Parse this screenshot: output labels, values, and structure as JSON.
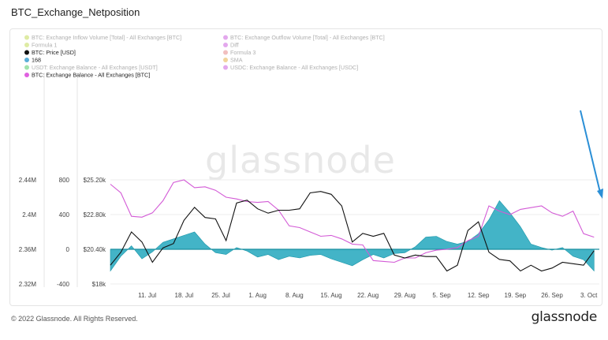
{
  "title": "BTC_Exchange_Netposition",
  "footer": "© 2022 Glassnode. All Rights Reserved.",
  "brand": "glassnode",
  "watermark": "glassnode",
  "chart_data": {
    "type": "area",
    "title": "BTC_Exchange_Netposition",
    "legend": [
      {
        "label": "BTC: Exchange Inflow Volume [Total] - All Exchanges [BTC]",
        "color": "#b5d335",
        "faded": true
      },
      {
        "label": "BTC: Exchange Outflow Volume [Total] - All Exchanges [BTC]",
        "color": "#c23fd6",
        "faded": true
      },
      {
        "label": "Formula 1",
        "color": "#b5d335",
        "faded": true
      },
      {
        "label": "Diff",
        "color": "#c23fd6",
        "faded": true
      },
      {
        "label": "BTC: Price [USD]",
        "color": "#111111",
        "faded": false
      },
      {
        "label": "Formula 3",
        "color": "#e07070",
        "faded": true
      },
      {
        "label": "168",
        "color": "#5aaed8",
        "faded": false
      },
      {
        "label": "SMA",
        "color": "#e0a020",
        "faded": true
      },
      {
        "label": "USDT: Exchange Balance - All Exchanges [USDT]",
        "color": "#2ec24a",
        "faded": true
      },
      {
        "label": "USDC: Exchange Balance - All Exchanges [USDC]",
        "color": "#c23fd6",
        "faded": true
      },
      {
        "label": "BTC: Exchange Balance - All Exchanges [BTC]",
        "color": "#e060e0",
        "faded": false
      }
    ],
    "x_ticks": [
      "11. Jul",
      "18. Jul",
      "25. Jul",
      "1. Aug",
      "8. Aug",
      "15. Aug",
      "22. Aug",
      "29. Aug",
      "5. Sep",
      "12. Sep",
      "19. Sep",
      "26. Sep",
      "3. Oct"
    ],
    "y_axis_balance": {
      "ticks": [
        "2.32M",
        "2.36M",
        "2.4M",
        "2.44M"
      ],
      "values": [
        2320000,
        2360000,
        2400000,
        2440000
      ]
    },
    "y_axis_netflow": {
      "ticks": [
        "-400",
        "0",
        "400",
        "800"
      ],
      "values": [
        -400,
        0,
        400,
        800
      ]
    },
    "y_axis_price": {
      "ticks": [
        "$18k",
        "$20.40k",
        "$22.80k",
        "$25.20k"
      ],
      "values": [
        18000,
        20400,
        22800,
        25200
      ]
    },
    "series_price": {
      "name": "BTC: Price [USD]",
      "color": "#111111",
      "x": [
        "2022-07-04",
        "2022-07-06",
        "2022-07-08",
        "2022-07-10",
        "2022-07-12",
        "2022-07-14",
        "2022-07-16",
        "2022-07-18",
        "2022-07-20",
        "2022-07-22",
        "2022-07-24",
        "2022-07-26",
        "2022-07-28",
        "2022-07-30",
        "2022-08-01",
        "2022-08-03",
        "2022-08-05",
        "2022-08-07",
        "2022-08-09",
        "2022-08-11",
        "2022-08-13",
        "2022-08-15",
        "2022-08-17",
        "2022-08-19",
        "2022-08-21",
        "2022-08-23",
        "2022-08-25",
        "2022-08-27",
        "2022-08-29",
        "2022-08-31",
        "2022-09-02",
        "2022-09-04",
        "2022-09-06",
        "2022-09-08",
        "2022-09-10",
        "2022-09-12",
        "2022-09-14",
        "2022-09-16",
        "2022-09-18",
        "2022-09-20",
        "2022-09-22",
        "2022-09-24",
        "2022-09-26",
        "2022-09-28",
        "2022-09-30",
        "2022-10-02",
        "2022-10-04"
      ],
      "values": [
        19300,
        20200,
        21600,
        20900,
        19500,
        20500,
        20800,
        22400,
        23300,
        22600,
        22500,
        21000,
        23600,
        23800,
        23200,
        22900,
        23100,
        23100,
        23200,
        24300,
        24400,
        24200,
        23400,
        20900,
        21500,
        21300,
        21500,
        20000,
        19800,
        20000,
        19900,
        19900,
        18900,
        19300,
        21700,
        22300,
        20200,
        19700,
        19600,
        18900,
        19300,
        18900,
        19100,
        19500,
        19400,
        19300,
        20300
      ]
    },
    "series_balance": {
      "name": "BTC: Exchange Balance - All Exchanges [BTC]",
      "color": "#d35ad6",
      "x": [
        "2022-07-04",
        "2022-07-06",
        "2022-07-08",
        "2022-07-10",
        "2022-07-12",
        "2022-07-14",
        "2022-07-16",
        "2022-07-18",
        "2022-07-20",
        "2022-07-22",
        "2022-07-24",
        "2022-07-26",
        "2022-07-28",
        "2022-07-30",
        "2022-08-01",
        "2022-08-03",
        "2022-08-05",
        "2022-08-07",
        "2022-08-09",
        "2022-08-11",
        "2022-08-13",
        "2022-08-15",
        "2022-08-17",
        "2022-08-19",
        "2022-08-21",
        "2022-08-23",
        "2022-08-25",
        "2022-08-27",
        "2022-08-29",
        "2022-08-31",
        "2022-09-02",
        "2022-09-04",
        "2022-09-06",
        "2022-09-08",
        "2022-09-10",
        "2022-09-12",
        "2022-09-14",
        "2022-09-16",
        "2022-09-18",
        "2022-09-20",
        "2022-09-22",
        "2022-09-24",
        "2022-09-26",
        "2022-09-28",
        "2022-09-30",
        "2022-10-02",
        "2022-10-04"
      ],
      "values": [
        2435000,
        2425000,
        2398000,
        2397000,
        2402000,
        2416000,
        2437000,
        2440000,
        2431000,
        2432000,
        2428000,
        2420000,
        2418000,
        2415000,
        2414000,
        2415000,
        2405000,
        2387000,
        2385000,
        2380000,
        2375000,
        2376000,
        2372000,
        2366000,
        2365000,
        2347000,
        2346000,
        2345000,
        2350000,
        2350000,
        2356000,
        2359000,
        2360000,
        2362000,
        2370000,
        2375000,
        2410000,
        2404000,
        2400000,
        2406000,
        2408000,
        2410000,
        2402000,
        2398000,
        2404000,
        2378000,
        2374000
      ]
    },
    "series_netflow": {
      "name": "168",
      "color": "#1fa5b8",
      "x": [
        "2022-07-04",
        "2022-07-06",
        "2022-07-08",
        "2022-07-10",
        "2022-07-12",
        "2022-07-14",
        "2022-07-16",
        "2022-07-18",
        "2022-07-20",
        "2022-07-22",
        "2022-07-24",
        "2022-07-26",
        "2022-07-28",
        "2022-07-30",
        "2022-08-01",
        "2022-08-03",
        "2022-08-05",
        "2022-08-07",
        "2022-08-09",
        "2022-08-11",
        "2022-08-13",
        "2022-08-15",
        "2022-08-17",
        "2022-08-19",
        "2022-08-21",
        "2022-08-23",
        "2022-08-25",
        "2022-08-27",
        "2022-08-29",
        "2022-08-31",
        "2022-09-02",
        "2022-09-04",
        "2022-09-06",
        "2022-09-08",
        "2022-09-10",
        "2022-09-12",
        "2022-09-14",
        "2022-09-16",
        "2022-09-18",
        "2022-09-20",
        "2022-09-22",
        "2022-09-24",
        "2022-09-26",
        "2022-09-28",
        "2022-09-30",
        "2022-10-02",
        "2022-10-04"
      ],
      "values": [
        -250,
        -80,
        40,
        -110,
        -30,
        80,
        120,
        160,
        200,
        60,
        -40,
        -60,
        20,
        -20,
        -90,
        -60,
        -120,
        -80,
        -100,
        -70,
        -60,
        -110,
        -150,
        -190,
        -120,
        -60,
        -100,
        -50,
        -40,
        30,
        140,
        150,
        90,
        60,
        90,
        180,
        340,
        560,
        420,
        260,
        60,
        20,
        -10,
        20,
        -80,
        -120,
        -250
      ]
    }
  }
}
